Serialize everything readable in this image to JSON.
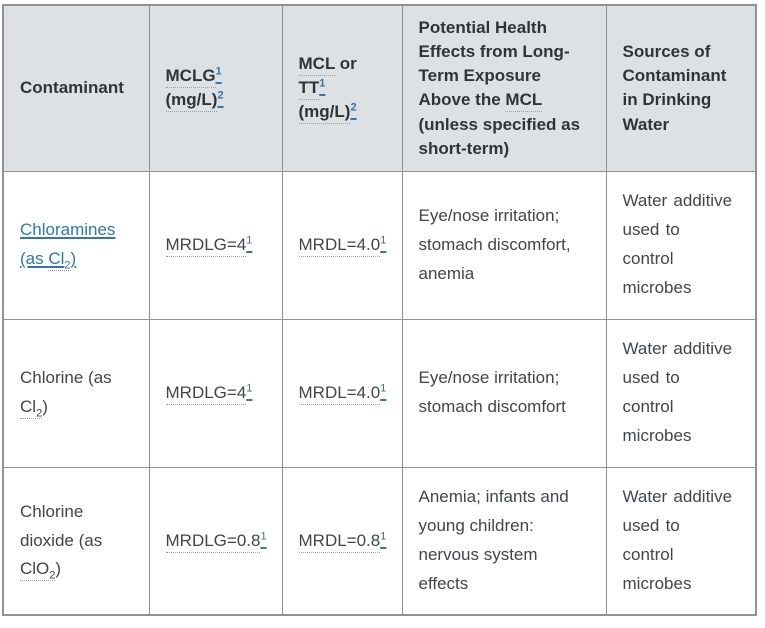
{
  "accent": {
    "link_blue": "#2d77b3",
    "header_bg": "#dee1e3",
    "border_gray": "#8f9296",
    "text_dark": "#414549"
  },
  "table": {
    "header": {
      "contaminant": "Contaminant",
      "mclg": {
        "abbr": "MCLG",
        "fn": "1",
        "unit_abbr": "(mg/L)",
        "unit_fn": "2"
      },
      "mcl_tt": {
        "abbr1": "MCL",
        "rest1": " or",
        "abbr2": "TT",
        "fn1": "1",
        "unit_abbr": "(mg/L)",
        "unit_fn": "2"
      },
      "health_effects": {
        "pre": "Potential Health Effects from Long-Term Exposure Above the ",
        "abbr": "MCL",
        "post": " (unless specified as short-term)"
      },
      "sources": "Sources of Contaminant in Drinking Water"
    },
    "rows": [
      {
        "contaminant": {
          "name": "Chloramines (as ",
          "formula": "Cl",
          "sub": "2",
          "close": ")"
        },
        "mclg": {
          "label": "MRDLG=4",
          "fn": "1"
        },
        "mcl": {
          "label": "MRDL=4.0",
          "fn": "1"
        },
        "effects": "Eye/nose irritation; stomach discomfort, anemia",
        "sources": "Water additive used to control microbes"
      },
      {
        "contaminant": {
          "name": "Chlorine (as ",
          "formula": "Cl",
          "sub": "2",
          "close": ")"
        },
        "mclg": {
          "label": "MRDLG=4",
          "fn": "1"
        },
        "mcl": {
          "label": "MRDL=4.0",
          "fn": "1"
        },
        "effects": "Eye/nose irritation; stomach discomfort",
        "sources": "Water additive used to control microbes"
      },
      {
        "contaminant": {
          "name": "Chlorine dioxide (as ",
          "formula": "ClO",
          "sub": "2",
          "close": ")"
        },
        "mclg": {
          "label": "MRDLG=0.8",
          "fn": "1"
        },
        "mcl": {
          "label": "MRDL=0.8",
          "fn": "1"
        },
        "effects": "Anemia; infants and young children: nervous system effects",
        "sources": "Water additive used to control microbes"
      }
    ]
  }
}
